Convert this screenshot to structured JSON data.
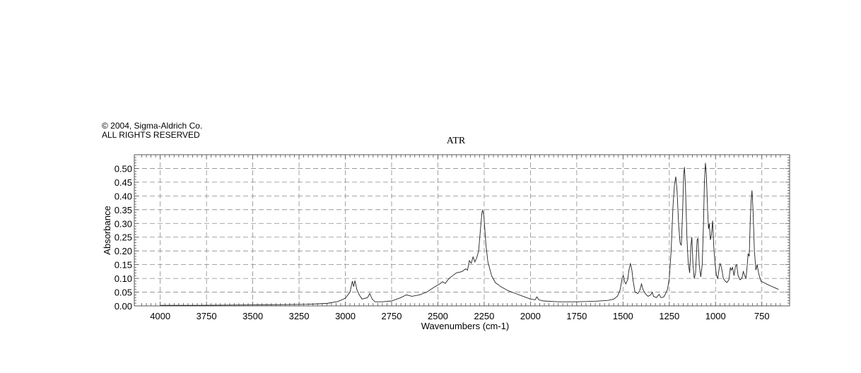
{
  "copyright": {
    "line1": "© 2004, Sigma-Aldrich Co.",
    "line2": "ALL RIGHTS RESERVED"
  },
  "chart_data": {
    "type": "line",
    "title": "ATR",
    "xlabel": "Wavenumbers (cm-1)",
    "ylabel": "Absorbance",
    "xlim": [
      4140,
      600
    ],
    "ylim": [
      0,
      0.55
    ],
    "x_reversed": true,
    "grid": true,
    "x_ticks": [
      4000,
      3750,
      3500,
      3250,
      3000,
      2750,
      2500,
      2250,
      2000,
      1750,
      1500,
      1250,
      1000,
      750
    ],
    "x_tick_labels": [
      "4000",
      "3750",
      "3500",
      "3250",
      "3000",
      "2750",
      "2500",
      "2250",
      "2000",
      "1750",
      "1500",
      "1250",
      "1000",
      "750"
    ],
    "y_ticks": [
      0,
      0.05,
      0.1,
      0.15,
      0.2,
      0.25,
      0.3,
      0.35,
      0.4,
      0.45,
      0.5
    ],
    "y_tick_labels": [
      "0.00",
      "0.05",
      "0.10",
      "0.15",
      "0.20",
      "0.25",
      "0.30",
      "0.35",
      "0.40",
      "0.45",
      "0.50"
    ],
    "series": [
      {
        "color": "#222222",
        "points": [
          [
            4000,
            0.002
          ],
          [
            3800,
            0.002
          ],
          [
            3600,
            0.003
          ],
          [
            3400,
            0.004
          ],
          [
            3200,
            0.006
          ],
          [
            3100,
            0.009
          ],
          [
            3040,
            0.016
          ],
          [
            3000,
            0.028
          ],
          [
            2975,
            0.05
          ],
          [
            2962,
            0.09
          ],
          [
            2955,
            0.07
          ],
          [
            2948,
            0.092
          ],
          [
            2938,
            0.06
          ],
          [
            2925,
            0.04
          ],
          [
            2910,
            0.025
          ],
          [
            2880,
            0.03
          ],
          [
            2868,
            0.045
          ],
          [
            2855,
            0.025
          ],
          [
            2840,
            0.015
          ],
          [
            2800,
            0.015
          ],
          [
            2750,
            0.018
          ],
          [
            2700,
            0.03
          ],
          [
            2670,
            0.04
          ],
          [
            2640,
            0.035
          ],
          [
            2600,
            0.04
          ],
          [
            2560,
            0.05
          ],
          [
            2520,
            0.068
          ],
          [
            2490,
            0.08
          ],
          [
            2475,
            0.088
          ],
          [
            2460,
            0.082
          ],
          [
            2440,
            0.1
          ],
          [
            2420,
            0.11
          ],
          [
            2400,
            0.12
          ],
          [
            2370,
            0.125
          ],
          [
            2350,
            0.135
          ],
          [
            2340,
            0.13
          ],
          [
            2330,
            0.165
          ],
          [
            2320,
            0.155
          ],
          [
            2310,
            0.178
          ],
          [
            2300,
            0.16
          ],
          [
            2290,
            0.175
          ],
          [
            2280,
            0.2
          ],
          [
            2270,
            0.28
          ],
          [
            2262,
            0.34
          ],
          [
            2258,
            0.348
          ],
          [
            2252,
            0.33
          ],
          [
            2240,
            0.22
          ],
          [
            2230,
            0.16
          ],
          [
            2210,
            0.11
          ],
          [
            2190,
            0.085
          ],
          [
            2160,
            0.07
          ],
          [
            2120,
            0.055
          ],
          [
            2080,
            0.045
          ],
          [
            2040,
            0.035
          ],
          [
            2000,
            0.025
          ],
          [
            1975,
            0.022
          ],
          [
            1965,
            0.033
          ],
          [
            1955,
            0.022
          ],
          [
            1930,
            0.018
          ],
          [
            1850,
            0.015
          ],
          [
            1750,
            0.015
          ],
          [
            1650,
            0.017
          ],
          [
            1580,
            0.02
          ],
          [
            1550,
            0.025
          ],
          [
            1530,
            0.035
          ],
          [
            1515,
            0.06
          ],
          [
            1505,
            0.1
          ],
          [
            1498,
            0.11
          ],
          [
            1492,
            0.09
          ],
          [
            1485,
            0.08
          ],
          [
            1475,
            0.095
          ],
          [
            1468,
            0.13
          ],
          [
            1460,
            0.155
          ],
          [
            1452,
            0.13
          ],
          [
            1445,
            0.09
          ],
          [
            1435,
            0.05
          ],
          [
            1420,
            0.045
          ],
          [
            1410,
            0.055
          ],
          [
            1400,
            0.08
          ],
          [
            1392,
            0.06
          ],
          [
            1380,
            0.045
          ],
          [
            1365,
            0.035
          ],
          [
            1350,
            0.04
          ],
          [
            1342,
            0.05
          ],
          [
            1335,
            0.035
          ],
          [
            1320,
            0.03
          ],
          [
            1305,
            0.042
          ],
          [
            1295,
            0.03
          ],
          [
            1280,
            0.032
          ],
          [
            1270,
            0.045
          ],
          [
            1260,
            0.06
          ],
          [
            1250,
            0.1
          ],
          [
            1240,
            0.2
          ],
          [
            1230,
            0.36
          ],
          [
            1222,
            0.44
          ],
          [
            1215,
            0.47
          ],
          [
            1208,
            0.42
          ],
          [
            1200,
            0.3
          ],
          [
            1192,
            0.23
          ],
          [
            1185,
            0.22
          ],
          [
            1178,
            0.34
          ],
          [
            1172,
            0.48
          ],
          [
            1168,
            0.505
          ],
          [
            1163,
            0.44
          ],
          [
            1155,
            0.25
          ],
          [
            1148,
            0.16
          ],
          [
            1140,
            0.12
          ],
          [
            1133,
            0.22
          ],
          [
            1128,
            0.25
          ],
          [
            1122,
            0.15
          ],
          [
            1115,
            0.1
          ],
          [
            1108,
            0.12
          ],
          [
            1100,
            0.24
          ],
          [
            1095,
            0.245
          ],
          [
            1088,
            0.15
          ],
          [
            1080,
            0.105
          ],
          [
            1072,
            0.15
          ],
          [
            1065,
            0.3
          ],
          [
            1060,
            0.45
          ],
          [
            1055,
            0.52
          ],
          [
            1050,
            0.48
          ],
          [
            1043,
            0.35
          ],
          [
            1038,
            0.28
          ],
          [
            1034,
            0.3
          ],
          [
            1028,
            0.24
          ],
          [
            1022,
            0.26
          ],
          [
            1016,
            0.31
          ],
          [
            1010,
            0.22
          ],
          [
            1002,
            0.15
          ],
          [
            995,
            0.11
          ],
          [
            988,
            0.1
          ],
          [
            982,
            0.13
          ],
          [
            976,
            0.155
          ],
          [
            968,
            0.14
          ],
          [
            958,
            0.1
          ],
          [
            948,
            0.09
          ],
          [
            938,
            0.085
          ],
          [
            928,
            0.095
          ],
          [
            920,
            0.14
          ],
          [
            915,
            0.13
          ],
          [
            908,
            0.14
          ],
          [
            900,
            0.11
          ],
          [
            892,
            0.145
          ],
          [
            886,
            0.15
          ],
          [
            878,
            0.11
          ],
          [
            868,
            0.095
          ],
          [
            858,
            0.1
          ],
          [
            850,
            0.125
          ],
          [
            843,
            0.11
          ],
          [
            836,
            0.1
          ],
          [
            830,
            0.14
          ],
          [
            824,
            0.19
          ],
          [
            818,
            0.18
          ],
          [
            813,
            0.3
          ],
          [
            808,
            0.38
          ],
          [
            803,
            0.42
          ],
          [
            797,
            0.34
          ],
          [
            790,
            0.2
          ],
          [
            782,
            0.13
          ],
          [
            775,
            0.15
          ],
          [
            768,
            0.12
          ],
          [
            755,
            0.09
          ],
          [
            740,
            0.085
          ],
          [
            720,
            0.078
          ],
          [
            700,
            0.072
          ],
          [
            680,
            0.066
          ],
          [
            660,
            0.06
          ]
        ]
      }
    ]
  }
}
